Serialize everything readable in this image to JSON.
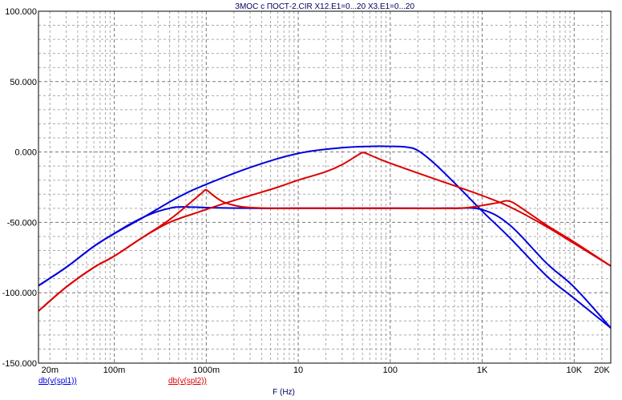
{
  "chart_data": {
    "type": "line",
    "title": "ЗМОС с ПОСТ-2.CIR X12.E1=0...20 X3.E1=0...20",
    "xlabel": "F (Hz)",
    "ylabel": "",
    "xscale": "log",
    "xlim": [
      0.015,
      25000
    ],
    "ylim": [
      -150,
      100
    ],
    "yticks": [
      "100.000",
      "50.000",
      "0.000",
      "-50.000",
      "-100.000",
      "-150.000"
    ],
    "ytick_values": [
      100,
      50,
      0,
      -50,
      -100,
      -150
    ],
    "xticks": [
      "20m",
      "100m",
      "1000m",
      "10",
      "100",
      "1K",
      "10K",
      "20K"
    ],
    "xtick_values": [
      0.02,
      0.1,
      1,
      10,
      100,
      1000,
      10000,
      20000
    ],
    "grid": true,
    "colors": {
      "blue": "#0000dd",
      "red": "#dd0000",
      "axis": "#000000"
    },
    "series": [
      {
        "name": "db(v(spl1))",
        "color": "#0000dd",
        "x": [
          0.015,
          0.03,
          0.06,
          0.1,
          0.15,
          0.25,
          0.4,
          0.55,
          1,
          3,
          6,
          10,
          20,
          40,
          70,
          100,
          160,
          200,
          300,
          500,
          1000,
          2000,
          5000,
          10000,
          25000
        ],
        "y": [
          -95,
          -82,
          -67,
          -58,
          -51,
          -44,
          -40,
          -39,
          -39.5,
          -40,
          -40,
          -40,
          -40,
          -40,
          -40,
          -40,
          -40,
          -40,
          -40,
          -40,
          -41,
          -52,
          -79,
          -96,
          -125
        ]
      },
      {
        "name": "db(v(spl1))",
        "color": "#0000dd",
        "x": [
          0.015,
          0.03,
          0.06,
          0.1,
          0.2,
          0.5,
          1,
          3,
          10,
          30,
          60,
          100,
          150,
          200,
          300,
          500,
          1000,
          2000,
          5000,
          10000,
          25000
        ],
        "y": [
          -95,
          -82,
          -67,
          -58,
          -47,
          -32,
          -23,
          -11,
          -1,
          3,
          4,
          4,
          3.5,
          1,
          -8,
          -22,
          -42,
          -61,
          -88,
          -104,
          -125
        ]
      },
      {
        "name": "db(v(spl2))",
        "color": "#dd0000",
        "x": [
          0.015,
          0.03,
          0.06,
          0.1,
          0.2,
          0.4,
          0.7,
          0.9,
          1.0,
          1.2,
          1.6,
          2.5,
          5,
          10,
          50,
          100,
          500,
          800,
          1000,
          1500,
          2000,
          3000,
          5000,
          10000,
          25000
        ],
        "y": [
          -113,
          -96,
          -82,
          -74,
          -61,
          -48,
          -35,
          -29,
          -27,
          -31,
          -36,
          -39,
          -40,
          -40,
          -40,
          -40,
          -40,
          -39,
          -38,
          -36,
          -35,
          -42,
          -52,
          -64,
          -81
        ]
      },
      {
        "name": "db(v(spl2))",
        "color": "#dd0000",
        "x": [
          0.015,
          0.03,
          0.06,
          0.1,
          0.2,
          0.4,
          0.8,
          1.5,
          3,
          6,
          10,
          20,
          30,
          45,
          50,
          55,
          70,
          100,
          200,
          500,
          1000,
          2000,
          5000,
          10000,
          25000
        ],
        "y": [
          -113,
          -96,
          -82,
          -74,
          -61,
          -50,
          -43,
          -37,
          -31,
          -25,
          -20,
          -14,
          -9,
          -2,
          -0.5,
          -1,
          -4,
          -8,
          -15,
          -24,
          -31,
          -39,
          -53,
          -65,
          -81
        ]
      }
    ],
    "legend": [
      {
        "label": "db(v(spl1))",
        "color": "#0000dd"
      },
      {
        "label": "db(v(spl2))",
        "color": "#dd0000"
      }
    ]
  }
}
